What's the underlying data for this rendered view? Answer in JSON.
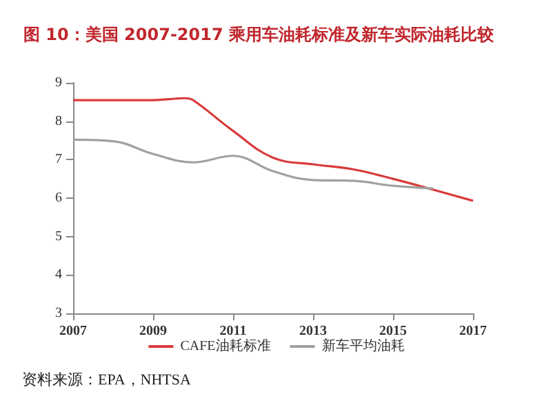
{
  "chart_data": {
    "type": "line",
    "title": "图 10：美国 2007-2017 乘用车油耗标准及新车实际油耗比较",
    "series": [
      {
        "name": "CAFE油耗标准",
        "color": "#d93a3a",
        "x": [
          2007,
          2008,
          2009,
          2009.8,
          2010,
          2011,
          2012,
          2013,
          2014,
          2015,
          2016,
          2017
        ],
        "values": [
          8.55,
          8.55,
          8.55,
          8.6,
          8.55,
          7.75,
          7.05,
          6.88,
          6.75,
          6.5,
          6.22,
          5.93
        ]
      },
      {
        "name": "新车平均油耗",
        "color": "#a0a0a0",
        "x": [
          2007,
          2008,
          2009,
          2010,
          2011,
          2012,
          2013,
          2014,
          2015,
          2016
        ],
        "values": [
          7.52,
          7.48,
          7.15,
          6.93,
          7.1,
          6.7,
          6.47,
          6.45,
          6.32,
          6.25
        ]
      }
    ],
    "xlim": [
      2007,
      2017
    ],
    "xticks": [
      2007,
      2009,
      2011,
      2013,
      2015,
      2017
    ],
    "ylim": [
      3,
      9
    ],
    "yticks": [
      3,
      4,
      5,
      6,
      7,
      8,
      9
    ],
    "grid": false,
    "legend": "bottom",
    "marker": "none",
    "line_style": "solid",
    "annotations": [
      "资料来源：EPA，NHTSA"
    ]
  }
}
